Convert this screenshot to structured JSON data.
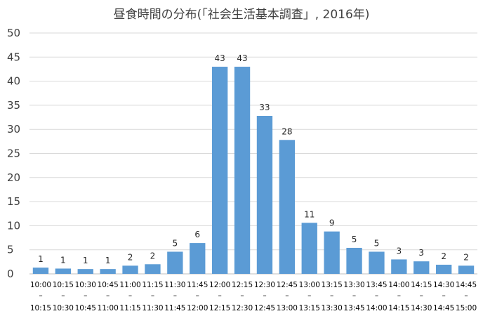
{
  "chart_data": {
    "type": "bar",
    "title": "昼食時間の分布(「社会生活基本調査」, 2016年)",
    "xlabel": "",
    "ylabel": "",
    "ylim": [
      0,
      50
    ],
    "yticks": [
      0,
      5,
      10,
      15,
      20,
      25,
      30,
      35,
      40,
      45,
      50
    ],
    "grid": true,
    "legend": "none",
    "bar_color": "#5b9bd5",
    "categories": [
      {
        "start": "10:00",
        "sep": "–",
        "end": "10:15"
      },
      {
        "start": "10:15",
        "sep": "–",
        "end": "10:30"
      },
      {
        "start": "10:30",
        "sep": "–",
        "end": "10:45"
      },
      {
        "start": "10:45",
        "sep": "–",
        "end": "11:00"
      },
      {
        "start": "11:00",
        "sep": "–",
        "end": "11:15"
      },
      {
        "start": "11:15",
        "sep": "–",
        "end": "11:30"
      },
      {
        "start": "11:30",
        "sep": "–",
        "end": "11:45"
      },
      {
        "start": "11:45",
        "sep": "–",
        "end": "12:00"
      },
      {
        "start": "12:00",
        "sep": "–",
        "end": "12:15"
      },
      {
        "start": "12:15",
        "sep": "–",
        "end": "12:30"
      },
      {
        "start": "12:30",
        "sep": "–",
        "end": "12:45"
      },
      {
        "start": "12:45",
        "sep": "–",
        "end": "13:00"
      },
      {
        "start": "13:00",
        "sep": "–",
        "end": "13:15"
      },
      {
        "start": "13:15",
        "sep": "–",
        "end": "13:30"
      },
      {
        "start": "13:30",
        "sep": "–",
        "end": "13:45"
      },
      {
        "start": "13:45",
        "sep": "–",
        "end": "14:00"
      },
      {
        "start": "14:00",
        "sep": "–",
        "end": "14:15"
      },
      {
        "start": "14:15",
        "sep": "–",
        "end": "14:30"
      },
      {
        "start": "14:30",
        "sep": "–",
        "end": "14:45"
      },
      {
        "start": "14:45",
        "sep": "–",
        "end": "15:00"
      }
    ],
    "values": [
      1.3,
      1.1,
      1.0,
      1.0,
      1.7,
      2.0,
      4.6,
      6.4,
      43.0,
      43.0,
      32.8,
      27.8,
      10.6,
      8.8,
      5.4,
      4.6,
      3.0,
      2.6,
      1.9,
      1.7
    ],
    "data_labels": [
      "1",
      "1",
      "1",
      "1",
      "2",
      "2",
      "5",
      "6",
      "43",
      "43",
      "33",
      "28",
      "11",
      "9",
      "5",
      "5",
      "3",
      "3",
      "2",
      "2"
    ]
  }
}
